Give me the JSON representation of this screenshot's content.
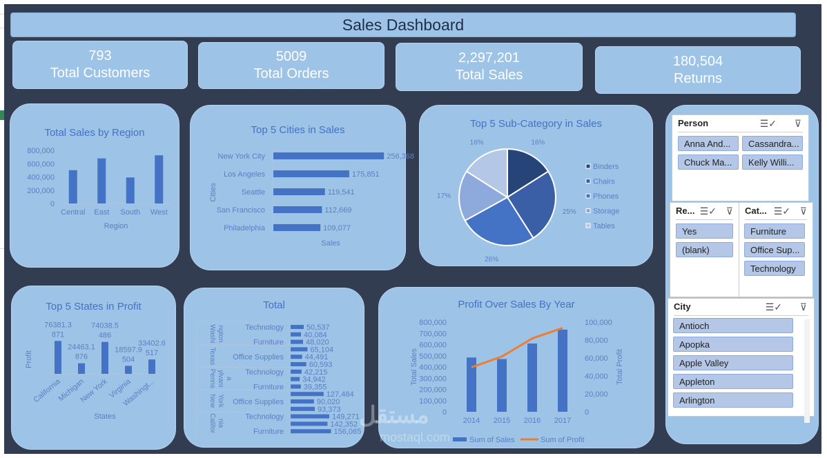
{
  "title": "Sales Dashboard",
  "kpis": [
    {
      "value": "793",
      "label": "Total Customers"
    },
    {
      "value": "5009",
      "label": "Total Orders"
    },
    {
      "value": "2,297,201",
      "label": "Total Sales"
    },
    {
      "value": "180,504",
      "label": "Returns"
    }
  ],
  "colors": {
    "background": "#323d52",
    "card": "#9dc3e6",
    "bar": "#4472c4",
    "line": "#ed7d31",
    "title": "#4472c4"
  },
  "chart_data": [
    {
      "type": "bar",
      "title": "Total Sales by Region",
      "categories": [
        "Central",
        "East",
        "South",
        "West"
      ],
      "values": [
        501240,
        678781,
        391722,
        725458
      ],
      "xlabel": "Region",
      "ylabel": "",
      "ylim": [
        0,
        800000
      ],
      "yticks": [
        "0",
        "200,000",
        "400,000",
        "600,000",
        "800,000"
      ]
    },
    {
      "type": "bar",
      "orientation": "horizontal",
      "title": "Top 5 Cities in Sales",
      "categories": [
        "New York City",
        "Los Angeles",
        "Seattle",
        "San Francisco",
        "Philadelphia"
      ],
      "values": [
        256368,
        175851,
        119541,
        112669,
        109077
      ],
      "labels": [
        "256,368",
        "175,851",
        "119,541",
        "112,669",
        "109,077"
      ],
      "xlabel": "Sales",
      "ylabel": "Cities"
    },
    {
      "type": "pie",
      "title": "Top 5 Sub-Category in Sales",
      "categories": [
        "Binders",
        "Chairs",
        "Phones",
        "Storage",
        "Tables"
      ],
      "values": [
        16,
        25,
        26,
        17,
        16
      ],
      "labels": [
        "16%",
        "25%",
        "26%",
        "17%",
        "16%"
      ],
      "colors": [
        "#264478",
        "#3a5fa6",
        "#4472c4",
        "#8ea9db",
        "#b4c7e7"
      ],
      "legend": "right"
    },
    {
      "type": "bar",
      "title": "Top 5 States in Profit",
      "categories": [
        "California",
        "Michigan",
        "New York",
        "Virginia",
        "Washingt..."
      ],
      "values": [
        76381.3871,
        24463.1876,
        74038.5486,
        18597.9504,
        33402.6517
      ],
      "labels": [
        [
          "76381.3",
          "871"
        ],
        [
          "24463.1",
          "876"
        ],
        [
          "74038.5",
          "486"
        ],
        [
          "18597.9",
          "504"
        ],
        [
          "33402.6",
          "517"
        ]
      ],
      "xlabel": "States",
      "ylabel": "Profit"
    },
    {
      "type": "bar",
      "orientation": "horizontal",
      "title": "Total",
      "groups": [
        {
          "name": [
            "Washi",
            "ngton"
          ],
          "rows": [
            {
              "label": "Technology",
              "value": 50537
            },
            {
              "label": "",
              "value": 40084
            },
            {
              "label": "Furniture",
              "value": 48020
            }
          ]
        },
        {
          "name": [
            "Texas"
          ],
          "rows": [
            {
              "label": "",
              "value": 65104
            },
            {
              "label": "Office Supplies",
              "value": 44491
            },
            {
              "label": "",
              "value": 60593
            }
          ]
        },
        {
          "name": [
            "Penns",
            "ylvani",
            "a"
          ],
          "rows": [
            {
              "label": "Technology",
              "value": 42215
            },
            {
              "label": "",
              "value": 34942
            },
            {
              "label": "Furniture",
              "value": 39355
            }
          ]
        },
        {
          "name": [
            "New",
            "York"
          ],
          "rows": [
            {
              "label": "",
              "value": 127484
            },
            {
              "label": "Office Supplies",
              "value": 90020
            },
            {
              "label": "",
              "value": 93373
            }
          ]
        },
        {
          "name": [
            "Califor",
            "nia"
          ],
          "rows": [
            {
              "label": "Technology",
              "value": 149271
            },
            {
              "label": "",
              "value": 142352
            },
            {
              "label": "Furniture",
              "value": 156065
            }
          ]
        }
      ],
      "value_labels": [
        "50,537",
        "40,084",
        "48,020",
        "65,104",
        "44,491",
        "60,593",
        "42,215",
        "34,942",
        "39,355",
        "127,484",
        "90,020",
        "93,373",
        "149,271",
        "142,352",
        "156,065"
      ]
    },
    {
      "type": "bar+line",
      "title": "Profit Over Sales By Year",
      "categories": [
        "2014",
        "2015",
        "2016",
        "2017"
      ],
      "series": [
        {
          "name": "Sum of Sales",
          "type": "bar",
          "axis": "left",
          "values": [
            484247,
            470533,
            609206,
            733215
          ]
        },
        {
          "name": "Sum of Profit",
          "type": "line",
          "axis": "right",
          "values": [
            49544,
            61619,
            81795,
            93439
          ]
        }
      ],
      "ylabel": "Total Sales",
      "y2label": "Total Profit",
      "ylim": [
        0,
        800000
      ],
      "y2lim": [
        0,
        100000
      ],
      "yticks": [
        "0",
        "100,000",
        "200,000",
        "300,000",
        "400,000",
        "500,000",
        "600,000",
        "700,000",
        "800,000"
      ],
      "y2ticks": [
        "0",
        "20,000",
        "40,000",
        "60,000",
        "80,000",
        "100,000"
      ],
      "legend": "bottom"
    }
  ],
  "slicers": {
    "person": {
      "title": "Person",
      "items": [
        "Anna And...",
        "Cassandra...",
        "Chuck Ma...",
        "Kelly Willi..."
      ]
    },
    "returned": {
      "title": "Re...",
      "items": [
        "Yes",
        "(blank)"
      ]
    },
    "category": {
      "title": "Cat...",
      "items": [
        "Furniture",
        "Office Sup...",
        "Technology"
      ]
    },
    "city": {
      "title": "City",
      "items": [
        "Antioch",
        "Apopka",
        "Apple Valley",
        "Appleton",
        "Arlington"
      ]
    }
  },
  "icons": {
    "multiselect": "multi-select-icon",
    "clear_filter": "clear-filter-icon"
  },
  "watermark": {
    "arabic": "مستقل",
    "latin": "mostaql.com"
  }
}
